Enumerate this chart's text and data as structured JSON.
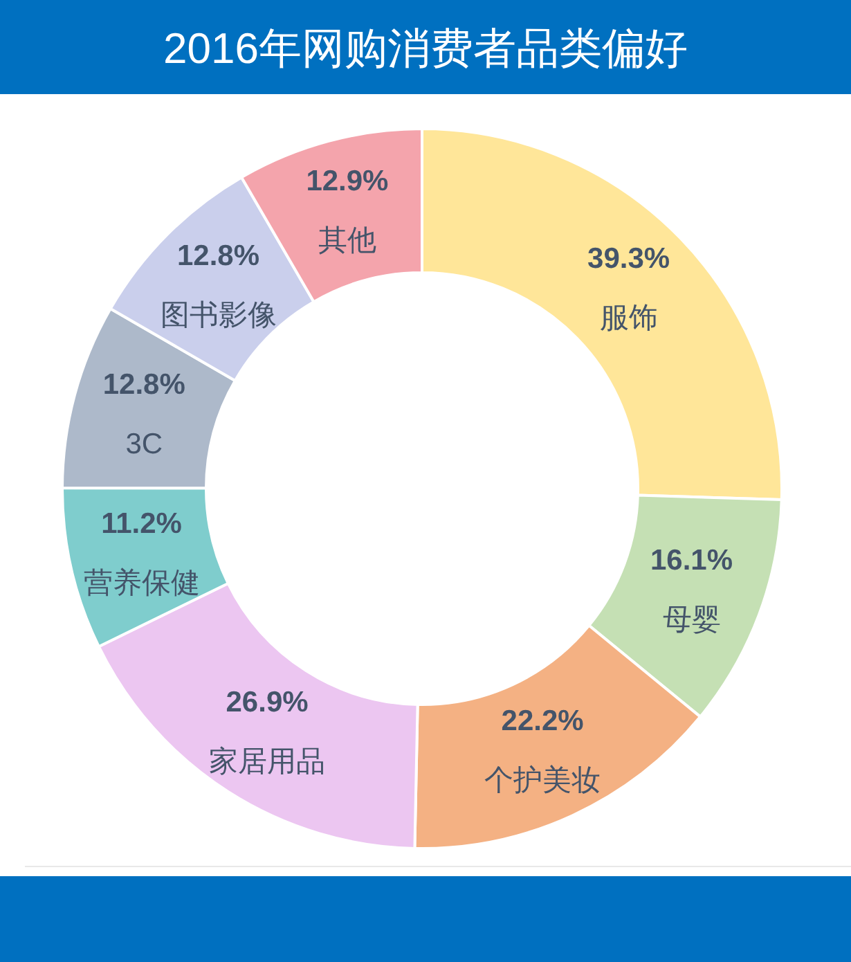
{
  "chart_data": {
    "type": "donut",
    "title": "2016年网购消费者品类偏好",
    "categories": [
      "服饰",
      "母婴",
      "个护美妆",
      "家居用品",
      "营养保健",
      "3C",
      "图书影像",
      "其他"
    ],
    "values": [
      39.3,
      16.1,
      22.2,
      26.9,
      11.2,
      12.8,
      12.8,
      12.9
    ],
    "colors": [
      "#ffe699",
      "#c5e0b4",
      "#f4b183",
      "#ecc6f1",
      "#7fcdcd",
      "#adb9ca",
      "#cacfec",
      "#f4a4ac"
    ],
    "value_labels": [
      "39.3%",
      "16.1%",
      "22.2%",
      "26.9%",
      "11.2%",
      "12.8%",
      "12.8%",
      "12.9%"
    ]
  }
}
